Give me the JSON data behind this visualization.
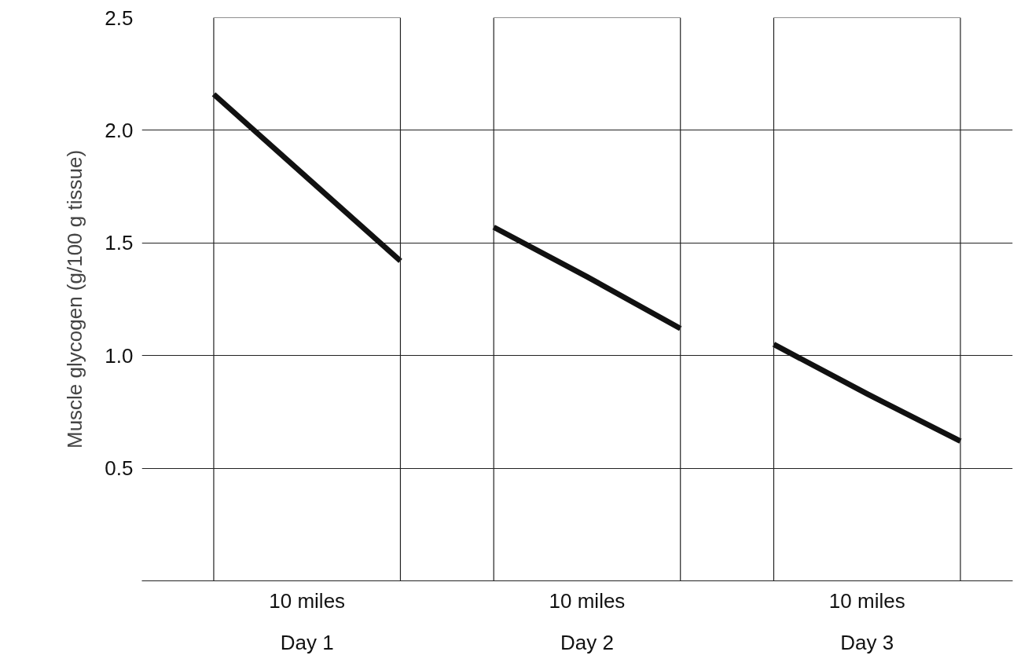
{
  "chart_data": {
    "type": "line",
    "ylabel": "Muscle glycogen (g/100 g tissue)",
    "categories": [
      null,
      "Day 1",
      null,
      null,
      "Day 2",
      null,
      null,
      "Day 3",
      null
    ],
    "series": [
      {
        "color": "#111111",
        "values": [
          2.16,
          1.79,
          1.42,
          null,
          null,
          null,
          null,
          null,
          null
        ]
      },
      {
        "color": "#111111",
        "values": [
          null,
          null,
          null,
          1.57,
          1.35,
          1.12,
          null,
          null,
          null
        ]
      },
      {
        "color": "#111111",
        "values": [
          null,
          null,
          null,
          null,
          null,
          null,
          1.05,
          0.83,
          0.62
        ]
      }
    ],
    "ylim": [
      0,
      2.5
    ],
    "yticks": [
      {
        "value": 0.5,
        "label": "0.5"
      },
      {
        "value": 1,
        "label": "1.0"
      },
      {
        "value": 1.5,
        "label": "1.5"
      },
      {
        "value": 2,
        "label": "2.0"
      },
      {
        "value": 2.5,
        "label": "2.5"
      }
    ],
    "grid": "y",
    "annotations": [
      "10 miles",
      "10 miles",
      "10 miles"
    ]
  }
}
